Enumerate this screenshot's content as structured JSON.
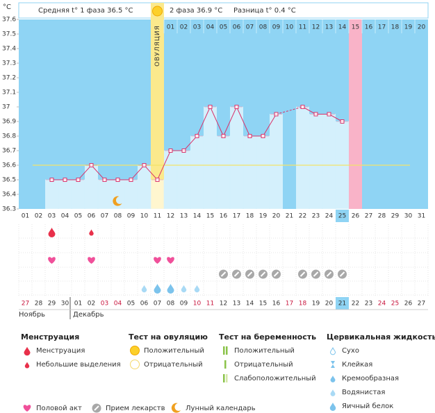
{
  "chart_data": {
    "type": "line",
    "y_unit": "°C",
    "phase1": "Средняя t° 1 фаза 36.5 °C",
    "phase2": "2 фаза 36.9 °C",
    "difference": "Разница t° 0.4 °C",
    "ovulation_label": "ОВУЛЯЦИЯ",
    "ovulation_day": "11",
    "selected_day": "25",
    "cycle_highlight": "15",
    "categories": [
      "01",
      "02",
      "03",
      "04",
      "05",
      "06",
      "07",
      "08",
      "09",
      "10",
      "11",
      "12",
      "13",
      "14",
      "15",
      "16",
      "17",
      "18",
      "19",
      "20",
      "21",
      "22",
      "23",
      "24",
      "25",
      "26",
      "27",
      "28",
      "29",
      "30",
      "31"
    ],
    "cycle_days": [
      null,
      null,
      null,
      null,
      null,
      null,
      null,
      null,
      null,
      null,
      null,
      "01",
      "02",
      "03",
      "04",
      "05",
      "06",
      "07",
      "08",
      "09",
      "10",
      "11",
      "12",
      "13",
      "14",
      "15",
      "16",
      "17",
      "18",
      "19",
      "20"
    ],
    "series": [
      {
        "color": "#d9336b",
        "values": [
          null,
          null,
          36.5,
          36.5,
          36.5,
          36.6,
          36.5,
          36.5,
          36.5,
          36.6,
          36.5,
          36.7,
          36.7,
          36.8,
          37.0,
          36.8,
          37.0,
          36.8,
          36.8,
          36.95,
          null,
          37.0,
          36.95,
          36.95,
          36.9,
          null,
          null,
          null,
          null,
          null,
          null
        ]
      }
    ],
    "coverline": 36.6,
    "coverline_color": "#f2e36a",
    "ylim": [
      36.3,
      37.6
    ],
    "yticks": [
      36.3,
      36.4,
      36.5,
      36.6,
      36.7,
      36.8,
      36.9,
      37,
      37.1,
      37.2,
      37.3,
      37.4,
      37.5,
      37.6
    ],
    "dates": [
      "27",
      "28",
      "29",
      "30",
      "01",
      "02",
      "03",
      "04",
      "05",
      "06",
      "07",
      "08",
      "09",
      "10",
      "11",
      "12",
      "13",
      "14",
      "15",
      "16",
      "17",
      "18",
      "19",
      "20",
      "21",
      "22",
      "23",
      "24",
      "25",
      "26",
      "27"
    ],
    "weekend": [
      true,
      false,
      false,
      false,
      false,
      false,
      true,
      true,
      false,
      false,
      false,
      false,
      false,
      true,
      true,
      false,
      false,
      false,
      false,
      false,
      true,
      true,
      false,
      false,
      false,
      false,
      false,
      true,
      true,
      false,
      false
    ],
    "months": [
      "Ноябрь",
      "Декабрь"
    ],
    "events": {
      "menstruation": [
        null,
        null,
        "heavy",
        null,
        null,
        "light",
        null,
        null,
        null,
        null,
        null,
        null,
        null,
        null,
        null,
        null,
        null,
        null,
        null,
        null,
        null,
        null,
        null,
        null,
        null,
        null,
        null,
        null,
        null,
        null,
        null
      ],
      "intercourse": [
        false,
        false,
        true,
        false,
        false,
        true,
        false,
        false,
        false,
        false,
        true,
        true,
        false,
        false,
        false,
        false,
        false,
        false,
        false,
        false,
        false,
        false,
        false,
        false,
        false,
        false,
        false,
        false,
        false,
        false,
        false
      ],
      "medication": [
        false,
        false,
        false,
        false,
        false,
        false,
        false,
        false,
        false,
        false,
        false,
        false,
        false,
        false,
        false,
        true,
        true,
        true,
        true,
        true,
        false,
        true,
        true,
        true,
        true,
        false,
        false,
        false,
        false,
        false,
        false
      ],
      "cervical_fluid": [
        null,
        null,
        null,
        null,
        null,
        null,
        null,
        null,
        null,
        "watery",
        "egg",
        "egg",
        "watery",
        "watery",
        null,
        null,
        null,
        null,
        null,
        null,
        null,
        null,
        null,
        null,
        null,
        null,
        null,
        null,
        null,
        null,
        null
      ],
      "moon": [
        false,
        false,
        false,
        false,
        false,
        false,
        false,
        true,
        false,
        false,
        false,
        false,
        false,
        false,
        false,
        false,
        false,
        false,
        false,
        false,
        false,
        false,
        false,
        false,
        false,
        false,
        false,
        false,
        false,
        false,
        false
      ]
    }
  },
  "legend": {
    "groups": [
      {
        "title": "Менструация",
        "items": [
          "Менструация",
          "Небольшие выделения"
        ]
      },
      {
        "title": "Тест на овуляцию",
        "items": [
          "Положительный",
          "Отрицательный"
        ]
      },
      {
        "title": "Тест на беременность",
        "items": [
          "Положительный",
          "Отрицательный",
          "Слабоположительный"
        ]
      },
      {
        "title": "Цервикальная жидкость",
        "items": [
          "Сухо",
          "Клейкая",
          "Кремообразная",
          "Водянистая",
          "Яичный белок"
        ]
      }
    ],
    "extra": [
      "Половой акт",
      "Прием лекарств",
      "Лунный календарь"
    ]
  }
}
